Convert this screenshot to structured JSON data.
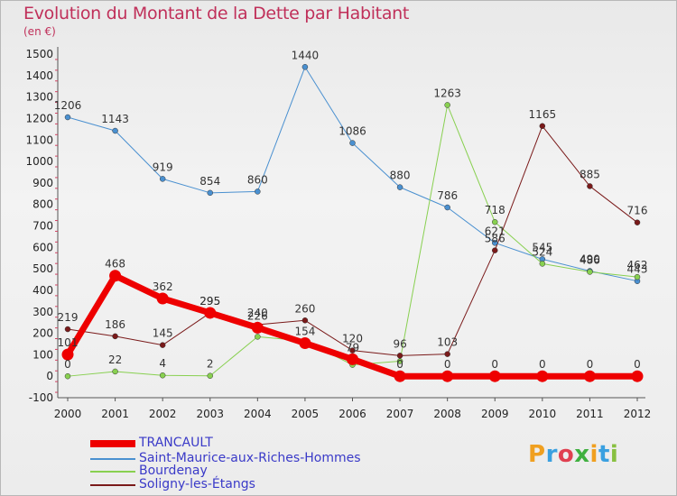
{
  "chart_data": {
    "type": "line",
    "title": "Evolution du Montant de la Dette par Habitant",
    "unit_label": "(en €)",
    "x": [
      "2000",
      "2001",
      "2002",
      "2003",
      "2004",
      "2005",
      "2006",
      "2007",
      "2008",
      "2009",
      "2010",
      "2011",
      "2012"
    ],
    "ylim": [
      -100,
      1500
    ],
    "yticks": [
      -100,
      0,
      100,
      200,
      300,
      400,
      500,
      600,
      700,
      800,
      900,
      1000,
      1100,
      1200,
      1300,
      1400,
      1500
    ],
    "grid": false,
    "legend_position": "bottom-left",
    "series": [
      {
        "name": "Saint-Maurice-aux-Riches-Hommes",
        "color": "#4a90d0",
        "width": 1,
        "values": [
          1206,
          1143,
          919,
          854,
          860,
          1440,
          1086,
          880,
          786,
          621,
          545,
          490,
          443
        ],
        "labels": [
          "1206",
          "1143",
          "919",
          "854",
          "860",
          "1440",
          "1086",
          "880",
          "786",
          "621",
          "545",
          "490",
          "443"
        ]
      },
      {
        "name": "Bourdenay",
        "color": "#88d050",
        "width": 1,
        "values": [
          0,
          22,
          4,
          2,
          184,
          164,
          53,
          70,
          1263,
          718,
          524,
          486,
          462
        ],
        "labels": [
          "0",
          "22",
          "4",
          "2",
          "",
          "",
          "",
          "",
          "1263",
          "718",
          "524",
          "486",
          "462"
        ]
      },
      {
        "name": "Soligny-les-Étangs",
        "color": "#7a1a1a",
        "width": 1,
        "values": [
          219,
          186,
          145,
          295,
          240,
          260,
          120,
          96,
          103,
          586,
          1165,
          885,
          716
        ],
        "labels": [
          "219",
          "186",
          "145",
          "295",
          "240",
          "260",
          "120",
          "96",
          "103",
          "586",
          "1165",
          "885",
          "716"
        ]
      },
      {
        "name": "TRANCAULT",
        "color": "#ee0000",
        "width": 7,
        "values": [
          101,
          468,
          362,
          295,
          226,
          154,
          79,
          0,
          0,
          0,
          0,
          0,
          0
        ],
        "labels": [
          "101",
          "468",
          "362",
          "295",
          "226",
          "154",
          "79",
          "0",
          "0",
          "0",
          "0",
          "0",
          "0"
        ]
      }
    ],
    "legend": [
      "TRANCAULT",
      "Saint-Maurice-aux-Riches-Hommes",
      "Bourdenay",
      "Soligny-les-Étangs"
    ]
  },
  "logo": {
    "letters": [
      "P",
      "r",
      "o",
      "x",
      "i",
      "t",
      "i"
    ],
    "colors": [
      "#f0a020",
      "#3aa0e0",
      "#e04050",
      "#40b040",
      "#f0a020",
      "#3aa0e0",
      "#88c040"
    ]
  }
}
